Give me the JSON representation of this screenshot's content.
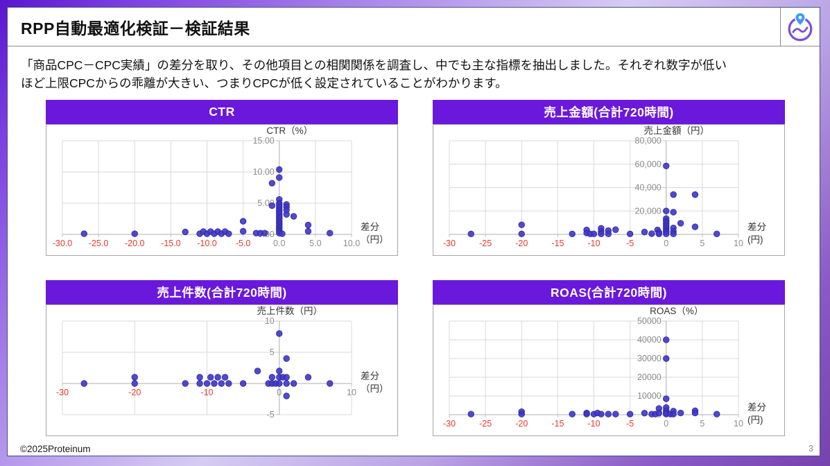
{
  "slide": {
    "title": "RPP自動最適化検証－検証結果",
    "description": [
      "「商品CPC－CPC実績」の差分を取り、その他項目との相関関係を調査し、中でも主な指標を抽出しました。それぞれ数字が低い",
      "ほど上限CPCからの乖離が大きい、つまりCPCが低く設定されていることがわかります。"
    ],
    "footer_copyright": "©2025Proteinum",
    "page_number": "3",
    "logo_icon": "proteinum-pin-wave-logo"
  },
  "colors": {
    "accent": "#6a18dc",
    "point": "#3f35c8",
    "point_stroke": "#2c28a0",
    "grid": "#d9d9d9",
    "axis": "#bfbfbf",
    "tick_label": "#8c8c8c",
    "tick_negative": "#e8382f",
    "axis_title": "#333333",
    "panel_border": "#a6a6a6",
    "logo_purple": "#7b52d6",
    "logo_blue": "#3d9bf0"
  },
  "chart_data": [
    {
      "type": "scatter",
      "title": "CTR",
      "y_axis_title": "CTR（%）",
      "x_axis_title": [
        "差分",
        "（円）"
      ],
      "x_range": [
        -30,
        10
      ],
      "y_range": [
        0,
        15
      ],
      "x_ticks": [
        [
          -30,
          "-30.0"
        ],
        [
          -25,
          "-25.0"
        ],
        [
          -20,
          "-20.0"
        ],
        [
          -15,
          "-15.0"
        ],
        [
          -10,
          "-10.0"
        ],
        [
          -5,
          "-5.0"
        ],
        [
          0,
          "0.0"
        ],
        [
          5,
          "5.0"
        ],
        [
          10,
          "10.0"
        ]
      ],
      "y_ticks": [
        [
          0,
          "0.00"
        ],
        [
          5,
          "5.00"
        ],
        [
          10,
          "10.00"
        ],
        [
          15,
          "15.00"
        ]
      ],
      "points": [
        [
          -27,
          0.1
        ],
        [
          -20,
          0.1
        ],
        [
          -13,
          0.4
        ],
        [
          -11,
          0.1
        ],
        [
          -10.5,
          0.45
        ],
        [
          -10,
          0.1
        ],
        [
          -9.5,
          0.45
        ],
        [
          -9,
          0.1
        ],
        [
          -8.5,
          0.45
        ],
        [
          -8,
          0.1
        ],
        [
          -7.5,
          0.45
        ],
        [
          -7,
          0.1
        ],
        [
          -5,
          2.1
        ],
        [
          -5,
          0.5
        ],
        [
          -3.2,
          0.2
        ],
        [
          -2.6,
          0.2
        ],
        [
          -2,
          0.2
        ],
        [
          -1,
          8.2
        ],
        [
          -1,
          4.6
        ],
        [
          0,
          10.4
        ],
        [
          0,
          9.1
        ],
        [
          0,
          5.6
        ],
        [
          0,
          5.0
        ],
        [
          0,
          4.7
        ],
        [
          0,
          4.4
        ],
        [
          0,
          4.1
        ],
        [
          0,
          3.8
        ],
        [
          0,
          3.5
        ],
        [
          0,
          3.2
        ],
        [
          0,
          2.9
        ],
        [
          0,
          2.6
        ],
        [
          0,
          2.3
        ],
        [
          0,
          2.0
        ],
        [
          0,
          1.7
        ],
        [
          0,
          1.4
        ],
        [
          0,
          1.1
        ],
        [
          0,
          0.8
        ],
        [
          0,
          0.5
        ],
        [
          0,
          0.2
        ],
        [
          0.4,
          0.1
        ],
        [
          1,
          4.8
        ],
        [
          1,
          4.4
        ],
        [
          1,
          3.9
        ],
        [
          1,
          3.2
        ],
        [
          2,
          2.9
        ],
        [
          4,
          1.5
        ],
        [
          4,
          0.5
        ],
        [
          7,
          0.2
        ]
      ]
    },
    {
      "type": "scatter",
      "title": "売上金額(合計720時間)",
      "y_axis_title": "売上金額（円）",
      "x_axis_title": [
        "差分",
        "(円)"
      ],
      "x_range": [
        -30,
        10
      ],
      "y_range": [
        0,
        80000
      ],
      "x_ticks": [
        [
          -30,
          "-30"
        ],
        [
          -25,
          "-25"
        ],
        [
          -20,
          "-20"
        ],
        [
          -15,
          "-15"
        ],
        [
          -10,
          "-10"
        ],
        [
          -5,
          "-5"
        ],
        [
          0,
          "0"
        ],
        [
          5,
          "5"
        ],
        [
          10,
          "10"
        ]
      ],
      "y_ticks": [
        [
          0,
          "0"
        ],
        [
          20000,
          "20,000"
        ],
        [
          40000,
          "40,000"
        ],
        [
          60000,
          "60,000"
        ],
        [
          80000,
          "80,000"
        ]
      ],
      "points": [
        [
          -27,
          400
        ],
        [
          -20,
          8200
        ],
        [
          -20,
          400
        ],
        [
          -13,
          400
        ],
        [
          -11,
          3800
        ],
        [
          -11,
          1200
        ],
        [
          -10.5,
          400
        ],
        [
          -10,
          400
        ],
        [
          -9,
          5200
        ],
        [
          -9,
          2600
        ],
        [
          -9,
          400
        ],
        [
          -8,
          3200
        ],
        [
          -8,
          400
        ],
        [
          -7,
          4000
        ],
        [
          -5,
          400
        ],
        [
          -3,
          2000
        ],
        [
          -2,
          600
        ],
        [
          -1.2,
          3800
        ],
        [
          -1,
          1600
        ],
        [
          -1,
          400
        ],
        [
          0,
          58500
        ],
        [
          0,
          20000
        ],
        [
          0,
          13500
        ],
        [
          0,
          11500
        ],
        [
          0,
          9500
        ],
        [
          0,
          7500
        ],
        [
          0,
          5500
        ],
        [
          0,
          3500
        ],
        [
          0,
          2000
        ],
        [
          0,
          400
        ],
        [
          1,
          34000
        ],
        [
          1,
          19000
        ],
        [
          1,
          5500
        ],
        [
          1,
          2500
        ],
        [
          1,
          400
        ],
        [
          2,
          9500
        ],
        [
          4,
          34000
        ],
        [
          4,
          6500
        ],
        [
          7,
          400
        ]
      ]
    },
    {
      "type": "scatter",
      "title": "売上件数(合計720時間)",
      "y_axis_title": "売上件数（円）",
      "x_axis_title": [
        "差分",
        "（円）"
      ],
      "x_range": [
        -30,
        10
      ],
      "y_range": [
        -5,
        10
      ],
      "x_ticks": [
        [
          -30,
          "-30"
        ],
        [
          -20,
          "-20"
        ],
        [
          -10,
          "-10"
        ],
        [
          0,
          "0"
        ],
        [
          10,
          "10"
        ]
      ],
      "y_ticks": [
        [
          -5,
          "-5"
        ],
        [
          0,
          "0"
        ],
        [
          5,
          "5"
        ],
        [
          10,
          "10"
        ]
      ],
      "points": [
        [
          -27,
          0
        ],
        [
          -20,
          1
        ],
        [
          -20,
          0
        ],
        [
          -13,
          0
        ],
        [
          -11,
          1
        ],
        [
          -11,
          0
        ],
        [
          -10,
          0
        ],
        [
          -9.5,
          1
        ],
        [
          -9,
          0
        ],
        [
          -8.5,
          1
        ],
        [
          -8,
          0
        ],
        [
          -7.5,
          1
        ],
        [
          -7,
          0
        ],
        [
          -5,
          0
        ],
        [
          -3,
          2
        ],
        [
          -1.5,
          0
        ],
        [
          -1,
          1
        ],
        [
          -1,
          0
        ],
        [
          -0.5,
          0
        ],
        [
          0,
          8
        ],
        [
          0,
          2
        ],
        [
          0,
          1
        ],
        [
          0,
          0
        ],
        [
          0.5,
          1
        ],
        [
          1,
          4
        ],
        [
          1,
          1
        ],
        [
          1,
          0
        ],
        [
          1,
          -2
        ],
        [
          2,
          0
        ],
        [
          4,
          1
        ],
        [
          7,
          0
        ]
      ]
    },
    {
      "type": "scatter",
      "title": "ROAS(合計720時間)",
      "y_axis_title": "ROAS（%）",
      "x_axis_title": [
        "差分",
        "(円)"
      ],
      "x_range": [
        -30,
        10
      ],
      "y_range": [
        0,
        50000
      ],
      "x_ticks": [
        [
          -30,
          "-30"
        ],
        [
          -25,
          "-25"
        ],
        [
          -20,
          "-20"
        ],
        [
          -15,
          "-15"
        ],
        [
          -10,
          "-10"
        ],
        [
          -5,
          "-5"
        ],
        [
          0,
          "0"
        ],
        [
          5,
          "5"
        ],
        [
          10,
          "10"
        ]
      ],
      "y_ticks": [
        [
          0,
          "0"
        ],
        [
          10000,
          "10000"
        ],
        [
          20000,
          "20000"
        ],
        [
          30000,
          "30000"
        ],
        [
          40000,
          "40000"
        ],
        [
          50000,
          "50000"
        ]
      ],
      "points": [
        [
          -27,
          300
        ],
        [
          -20,
          1600
        ],
        [
          -20,
          300
        ],
        [
          -13,
          300
        ],
        [
          -11,
          900
        ],
        [
          -11,
          300
        ],
        [
          -10,
          300
        ],
        [
          -9.5,
          900
        ],
        [
          -9,
          300
        ],
        [
          -8,
          300
        ],
        [
          -7,
          300
        ],
        [
          -5,
          300
        ],
        [
          -3,
          800
        ],
        [
          -2,
          300
        ],
        [
          -1.5,
          300
        ],
        [
          -1,
          3300
        ],
        [
          -1,
          900
        ],
        [
          0,
          40000
        ],
        [
          0,
          30000
        ],
        [
          0,
          8500
        ],
        [
          0,
          3800
        ],
        [
          0,
          2200
        ],
        [
          0,
          900
        ],
        [
          0,
          300
        ],
        [
          0.6,
          300
        ],
        [
          1,
          1900
        ],
        [
          1,
          300
        ],
        [
          2,
          900
        ],
        [
          4,
          2100
        ],
        [
          4,
          900
        ],
        [
          7,
          300
        ]
      ]
    }
  ]
}
